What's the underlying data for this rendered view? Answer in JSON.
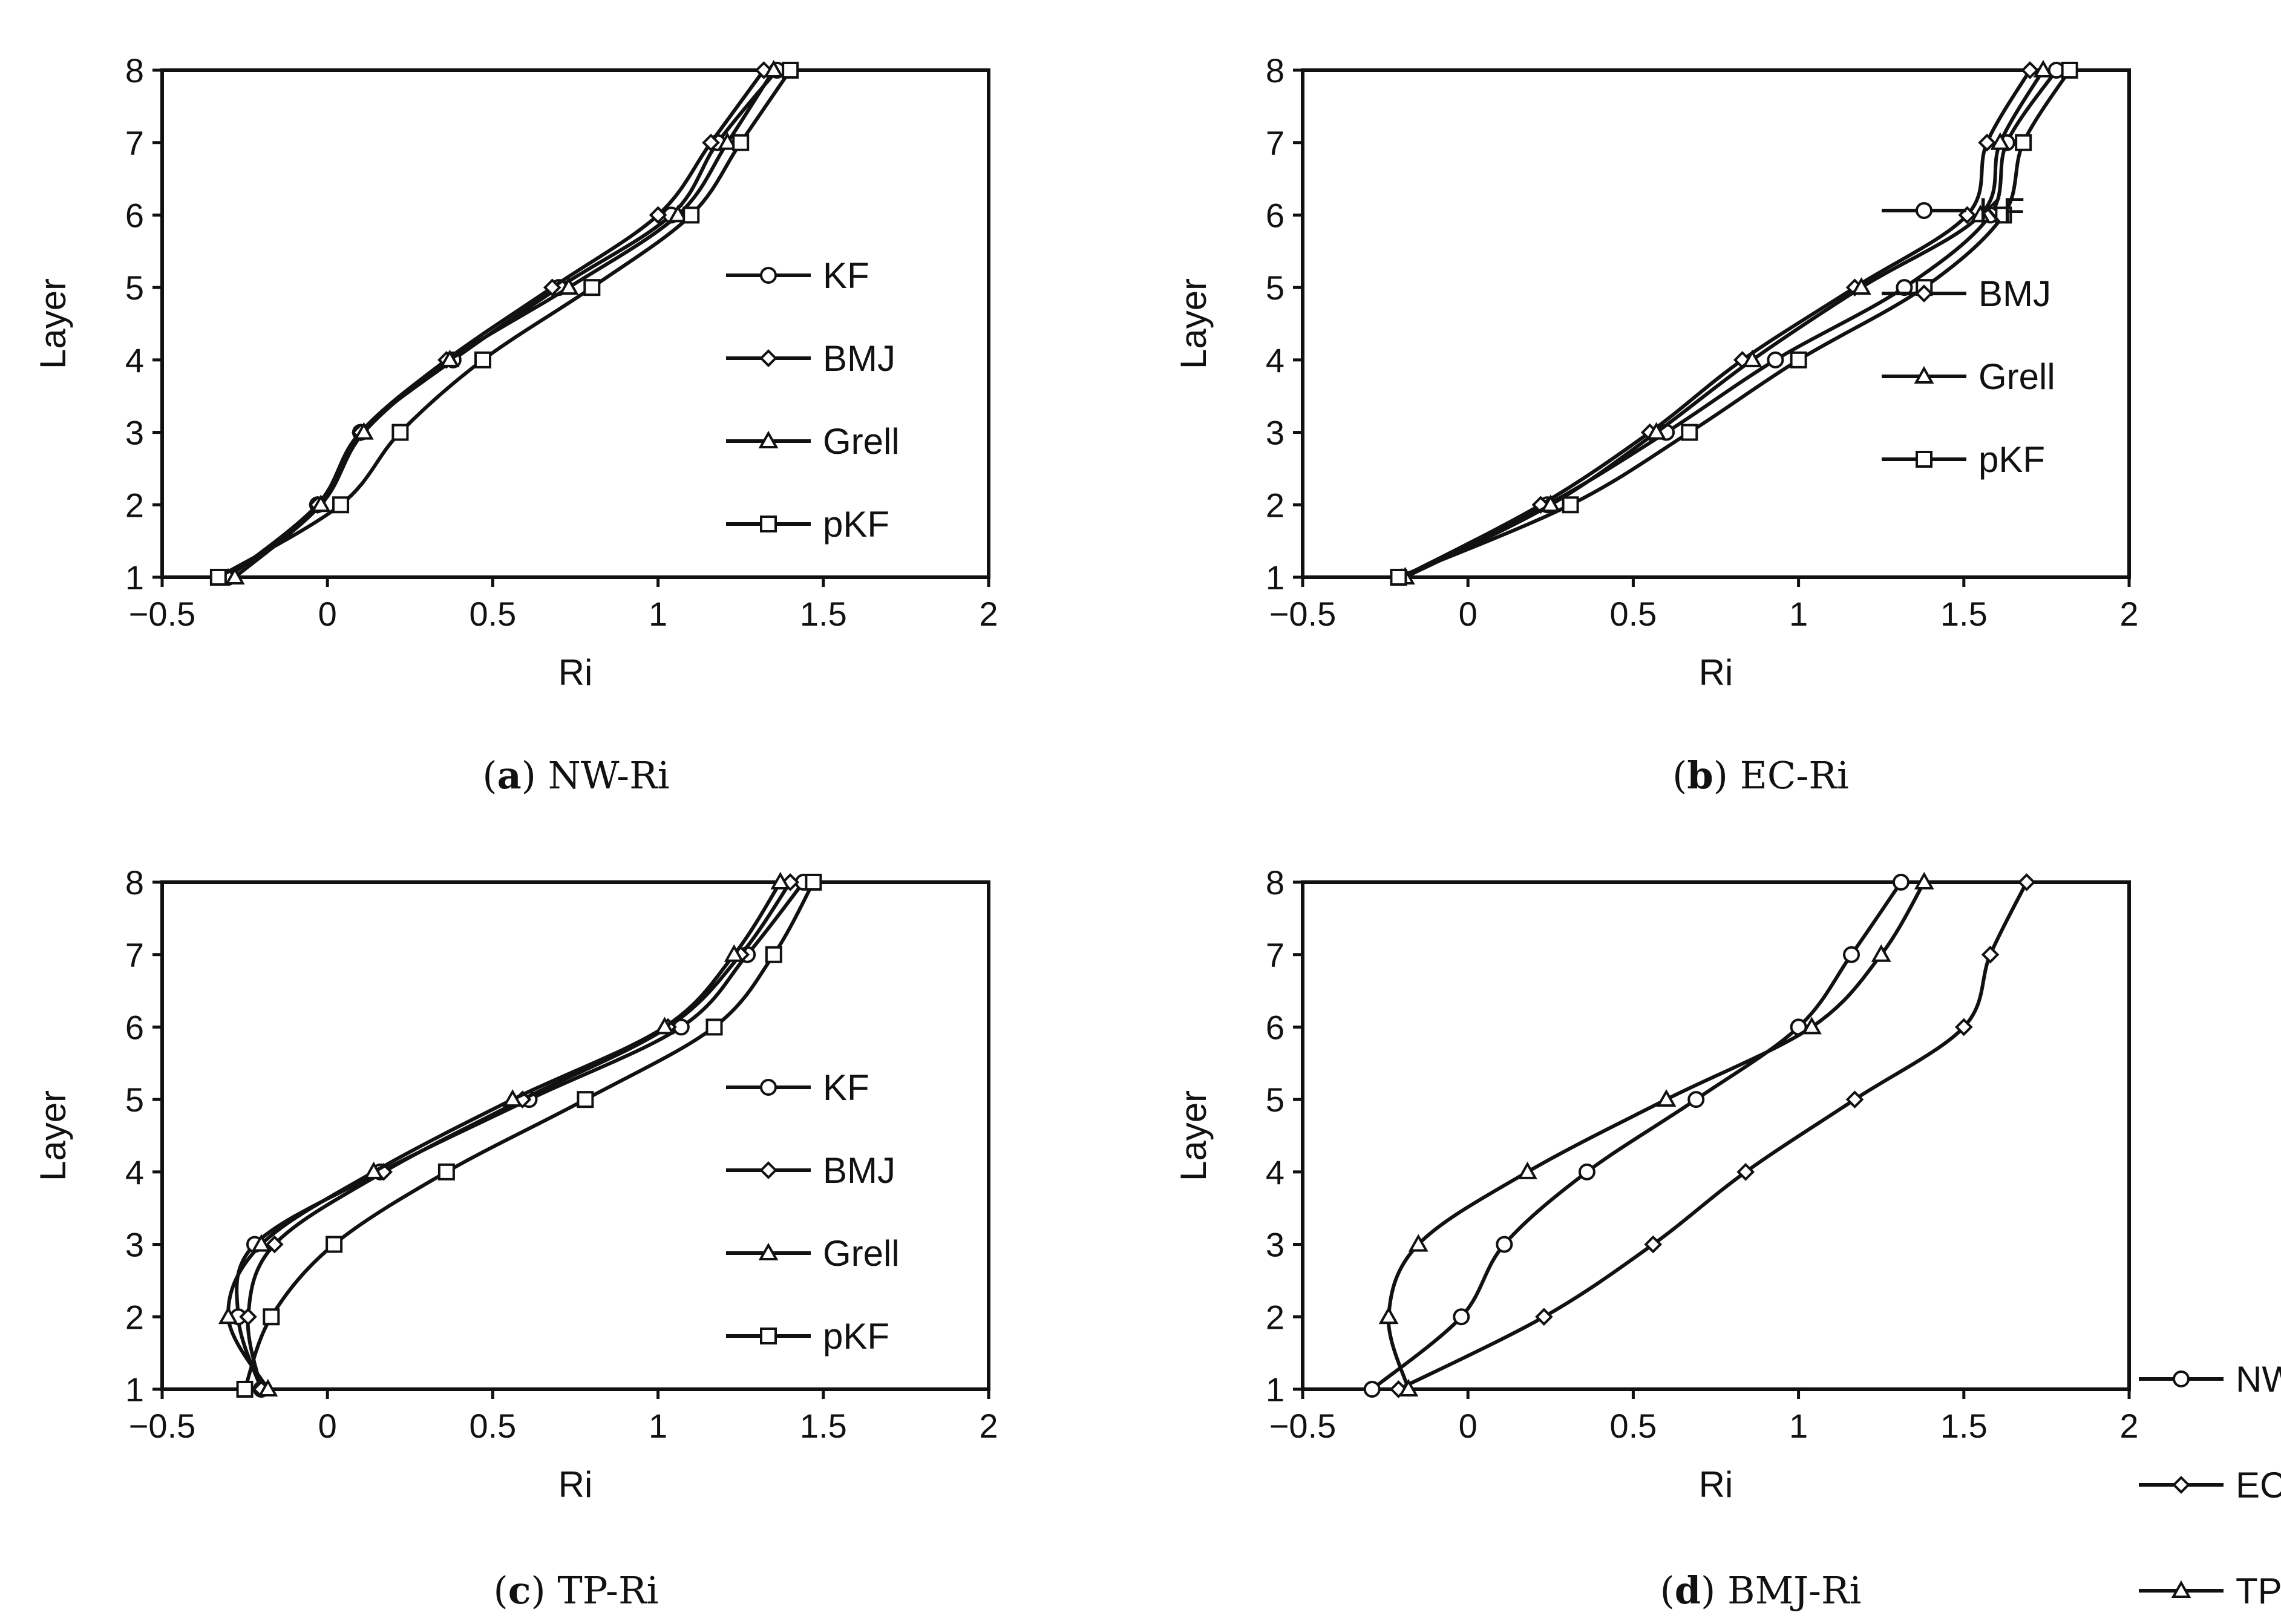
{
  "figure": {
    "captions": [
      {
        "letter": "a",
        "text": "NW-Ri"
      },
      {
        "letter": "b",
        "text": "EC-Ri"
      },
      {
        "letter": "c",
        "text": "TP-Ri"
      },
      {
        "letter": "d",
        "text": "BMJ-Ri"
      }
    ]
  },
  "chart_data": [
    {
      "id": "a",
      "type": "line",
      "title": "NW-Ri",
      "xlabel": "Ri",
      "ylabel": "Layer",
      "xlim": [
        -0.5,
        2
      ],
      "ylim": [
        1,
        8
      ],
      "xticks": [
        -0.5,
        0,
        0.5,
        1,
        1.5,
        2
      ],
      "xtick_labels": [
        "−0.5",
        "0",
        "0.5",
        "1",
        "1.5",
        "2"
      ],
      "yticks": [
        1,
        2,
        3,
        4,
        5,
        6,
        7,
        8
      ],
      "ytick_labels": [
        "1",
        "2",
        "3",
        "4",
        "5",
        "6",
        "7",
        "8"
      ],
      "legend_position": "center-right",
      "y": [
        1,
        2,
        3,
        4,
        5,
        6,
        7,
        8
      ],
      "series": [
        {
          "name": "KF",
          "marker": "circle",
          "x": [
            -0.3,
            -0.03,
            0.1,
            0.38,
            0.7,
            1.04,
            1.18,
            1.36
          ]
        },
        {
          "name": "BMJ",
          "marker": "diamond",
          "x": [
            -0.3,
            -0.03,
            0.1,
            0.36,
            0.68,
            1.0,
            1.16,
            1.32
          ]
        },
        {
          "name": "Grell",
          "marker": "triangle",
          "x": [
            -0.28,
            -0.02,
            0.11,
            0.37,
            0.73,
            1.06,
            1.21,
            1.35
          ]
        },
        {
          "name": "pKF",
          "marker": "square",
          "x": [
            -0.33,
            0.04,
            0.22,
            0.47,
            0.8,
            1.1,
            1.25,
            1.4
          ]
        }
      ]
    },
    {
      "id": "b",
      "type": "line",
      "title": "EC-Ri",
      "xlabel": "Ri",
      "ylabel": "Layer",
      "xlim": [
        -0.5,
        2
      ],
      "ylim": [
        1,
        8
      ],
      "xticks": [
        -0.5,
        0,
        0.5,
        1,
        1.5,
        2
      ],
      "xtick_labels": [
        "−0.5",
        "0",
        "0.5",
        "1",
        "1.5",
        "2"
      ],
      "yticks": [
        1,
        2,
        3,
        4,
        5,
        6,
        7,
        8
      ],
      "ytick_labels": [
        "1",
        "2",
        "3",
        "4",
        "5",
        "6",
        "7",
        "8"
      ],
      "legend_position": "upper-left",
      "y": [
        1,
        2,
        3,
        4,
        5,
        6,
        7,
        8
      ],
      "series": [
        {
          "name": "KF",
          "marker": "circle",
          "x": [
            -0.2,
            0.24,
            0.6,
            0.93,
            1.32,
            1.58,
            1.63,
            1.78
          ]
        },
        {
          "name": "BMJ",
          "marker": "diamond",
          "x": [
            -0.2,
            0.22,
            0.55,
            0.83,
            1.17,
            1.51,
            1.57,
            1.7
          ]
        },
        {
          "name": "Grell",
          "marker": "triangle",
          "x": [
            -0.19,
            0.25,
            0.57,
            0.86,
            1.19,
            1.55,
            1.61,
            1.74
          ]
        },
        {
          "name": "pKF",
          "marker": "square",
          "x": [
            -0.21,
            0.31,
            0.67,
            1.0,
            1.38,
            1.62,
            1.68,
            1.82
          ]
        }
      ]
    },
    {
      "id": "c",
      "type": "line",
      "title": "TP-Ri",
      "xlabel": "Ri",
      "ylabel": "Layer",
      "xlim": [
        -0.5,
        2
      ],
      "ylim": [
        1,
        8
      ],
      "xticks": [
        -0.5,
        0,
        0.5,
        1,
        1.5,
        2
      ],
      "xtick_labels": [
        "−0.5",
        "0",
        "0.5",
        "1",
        "1.5",
        "2"
      ],
      "yticks": [
        1,
        2,
        3,
        4,
        5,
        6,
        7,
        8
      ],
      "ytick_labels": [
        "1",
        "2",
        "3",
        "4",
        "5",
        "6",
        "7",
        "8"
      ],
      "legend_position": "center-right",
      "y": [
        1,
        2,
        3,
        4,
        5,
        6,
        7,
        8
      ],
      "series": [
        {
          "name": "KF",
          "marker": "circle",
          "x": [
            -0.2,
            -0.27,
            -0.22,
            0.16,
            0.61,
            1.07,
            1.27,
            1.44
          ]
        },
        {
          "name": "BMJ",
          "marker": "diamond",
          "x": [
            -0.2,
            -0.24,
            -0.16,
            0.17,
            0.59,
            1.03,
            1.25,
            1.4
          ]
        },
        {
          "name": "Grell",
          "marker": "triangle",
          "x": [
            -0.18,
            -0.3,
            -0.2,
            0.14,
            0.56,
            1.02,
            1.23,
            1.37
          ]
        },
        {
          "name": "pKF",
          "marker": "square",
          "x": [
            -0.25,
            -0.17,
            0.02,
            0.36,
            0.78,
            1.17,
            1.35,
            1.47
          ]
        }
      ]
    },
    {
      "id": "d",
      "type": "line",
      "title": "BMJ-Ri",
      "xlabel": "Ri",
      "ylabel": "Layer",
      "xlim": [
        -0.5,
        2
      ],
      "ylim": [
        1,
        8
      ],
      "xticks": [
        -0.5,
        0,
        0.5,
        1,
        1.5,
        2
      ],
      "xtick_labels": [
        "−0.5",
        "0",
        "0.5",
        "1",
        "1.5",
        "2"
      ],
      "yticks": [
        1,
        2,
        3,
        4,
        5,
        6,
        7,
        8
      ],
      "ytick_labels": [
        "1",
        "2",
        "3",
        "4",
        "5",
        "6",
        "7",
        "8"
      ],
      "legend_position": "center-right",
      "y": [
        1,
        2,
        3,
        4,
        5,
        6,
        7,
        8
      ],
      "series": [
        {
          "name": "NW",
          "marker": "circle",
          "x": [
            -0.29,
            -0.02,
            0.11,
            0.36,
            0.69,
            1.0,
            1.16,
            1.31
          ]
        },
        {
          "name": "EC",
          "marker": "diamond",
          "x": [
            -0.21,
            0.23,
            0.56,
            0.84,
            1.17,
            1.5,
            1.58,
            1.69
          ]
        },
        {
          "name": "TP",
          "marker": "triangle",
          "x": [
            -0.18,
            -0.24,
            -0.15,
            0.18,
            0.6,
            1.04,
            1.25,
            1.38
          ]
        }
      ]
    }
  ]
}
